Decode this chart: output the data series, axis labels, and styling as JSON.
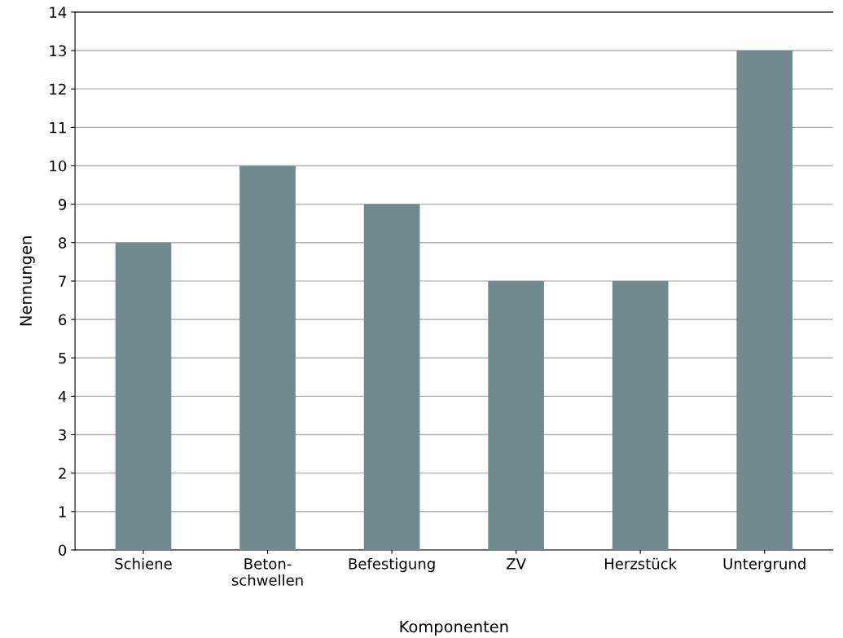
{
  "chart_data": {
    "type": "bar",
    "xlabel": "Komponenten",
    "ylabel": "Nennungen",
    "categories": [
      "Schiene",
      "Beton-\nschwellen",
      "Befestigung",
      "ZV",
      "Herzstück",
      "Untergrund"
    ],
    "values": [
      8,
      10,
      9,
      7,
      7,
      13
    ],
    "color": "#718a8e",
    "ylim": [
      0,
      14
    ],
    "yticks": [
      0,
      1,
      2,
      3,
      4,
      5,
      6,
      7,
      8,
      9,
      10,
      11,
      12,
      13,
      14
    ],
    "grid": "y"
  }
}
